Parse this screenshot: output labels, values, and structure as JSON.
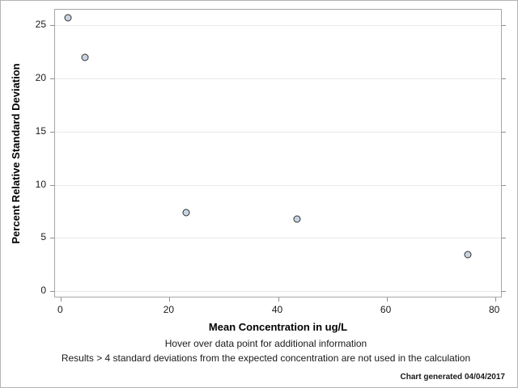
{
  "chart_data": {
    "type": "scatter",
    "title": "",
    "xlabel": "Mean Concentration in ug/L",
    "ylabel": "Percent Relative Standard Deviation",
    "points": [
      {
        "x": 1.3,
        "y": 25.7
      },
      {
        "x": 4.5,
        "y": 22.0
      },
      {
        "x": 23.1,
        "y": 7.4
      },
      {
        "x": 43.5,
        "y": 6.8
      },
      {
        "x": 75.0,
        "y": 3.4
      }
    ],
    "xticks": [
      0,
      20,
      40,
      60,
      80
    ],
    "yticks": [
      0,
      5,
      10,
      15,
      20,
      25
    ],
    "xlim": [
      -1.1,
      81.4
    ],
    "ylim": [
      -0.8,
      26.5
    ],
    "grid": "horizontal-only",
    "legend": "none",
    "marker_fill": "#c9d4e3",
    "marker_stroke": "#2f2f2f"
  },
  "footnotes": {
    "hover": "Hover over data point for additional information",
    "exclusion": "Results > 4 standard deviations from the expected concentration are not used in the calculation",
    "generated": "Chart generated 04/04/2017"
  },
  "colors": {
    "frame": "#a6a6a6",
    "gridline": "#e9e9e9",
    "background": "#ffffff",
    "text": "#1a1a1a"
  }
}
